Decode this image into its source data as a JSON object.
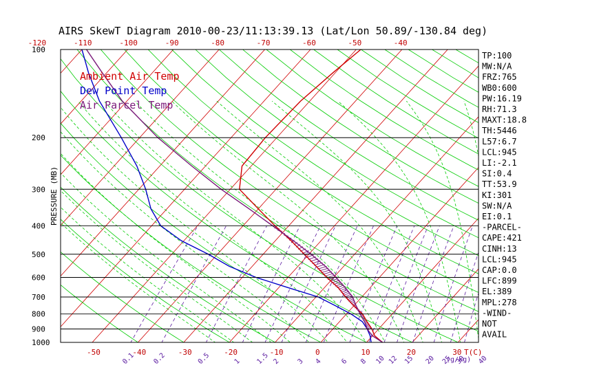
{
  "title": "AIRS SkewT Diagram 2010-00-23/11:13:39.13 (Lat/Lon 50.89/-130.84 deg)",
  "legend": [
    "Ambient Air Temp",
    "Dew Point Temp",
    "Air Parcel Temp"
  ],
  "colors": {
    "temp": "#d00000",
    "dew": "#0000c8",
    "parcel": "#7a1a7a",
    "isotherm": "#d00000",
    "dry_adiabat": "#00cc00",
    "moist_adiabat": "#00cc00",
    "mixing_ratio": "#5a1aa0",
    "frame": "#000000"
  },
  "stats": [
    "TP:100",
    "MW:N/A",
    "FRZ:765",
    "WB0:600",
    "PW:16.19",
    "RH:71.3",
    "MAXT:18.8",
    "TH:5446",
    "L57:6.7",
    "LCL:945",
    "LI:-2.1",
    "SI:0.4",
    "TT:53.9",
    "KI:301",
    "SW:N/A",
    "EI:0.1",
    "-PARCEL-",
    "CAPE:421",
    "CINH:13",
    "LCL:945",
    "CAP:0.0",
    "LFC:899",
    "EL:389",
    "MPL:278",
    "-WIND-",
    "NOT",
    "AVAIL"
  ],
  "chart_data": {
    "type": "line",
    "title": "AIRS SkewT Diagram 2010-00-23/11:13:39.13 (Lat/Lon 50.89/-130.84 deg)",
    "ylabel": "PRESSURE (MB)",
    "y_axis_scale": "log",
    "ylim": [
      1000,
      100
    ],
    "pressure_ticks": [
      100,
      200,
      300,
      400,
      500,
      600,
      700,
      800,
      900,
      1000
    ],
    "bottom_temp_ticks": [
      -50,
      -40,
      -30,
      -20,
      -10,
      0,
      10,
      20,
      30
    ],
    "bottom_unit_label": "T(C)",
    "top_temp_ticks": [
      -120,
      -110,
      -100,
      -90,
      -80,
      -70,
      -60,
      -50,
      -40
    ],
    "mixing_ratio_ticks": [
      "0.1",
      "0.2",
      "0.5",
      "1",
      "1.5",
      "2",
      "3",
      "4",
      "6",
      "8",
      "10",
      "12",
      "15",
      "20",
      "25",
      "30",
      "40"
    ],
    "mixing_ratio_unit_label": "(g/kg)",
    "mixing_ratio_values": [
      0.1,
      0.2,
      0.5,
      1,
      1.5,
      2,
      3,
      4,
      6,
      8,
      10,
      12,
      15,
      20,
      25,
      30,
      40
    ],
    "grid": true,
    "legend_position": "top-left",
    "series": [
      {
        "name": "Ambient Air Temp",
        "pressure": [
          1000,
          950,
          900,
          850,
          800,
          750,
          700,
          650,
          600,
          550,
          500,
          450,
          400,
          350,
          300,
          250,
          200,
          150,
          120,
          100
        ],
        "temperature": [
          13.5,
          10.5,
          8.5,
          6.0,
          3.5,
          0.0,
          -3.5,
          -7.0,
          -11.5,
          -16.0,
          -21.0,
          -26.5,
          -33.0,
          -40.0,
          -48.0,
          -52.0,
          -52.5,
          -52.0,
          -50.5,
          -49.0
        ]
      },
      {
        "name": "Dew Point Temp",
        "pressure": [
          1000,
          950,
          900,
          850,
          800,
          750,
          700,
          650,
          600,
          550,
          500,
          450,
          400,
          350,
          300,
          250,
          200,
          150,
          120,
          100
        ],
        "temperature": [
          11.0,
          9.5,
          7.5,
          5.0,
          1.0,
          -4.0,
          -9.5,
          -18.0,
          -27.0,
          -35.0,
          -42.0,
          -50.5,
          -58.0,
          -63.5,
          -68.5,
          -75.0,
          -84.0,
          -96.0,
          -104.0,
          -110.0
        ]
      },
      {
        "name": "Air Parcel Temp",
        "pressure": [
          1000,
          950,
          900,
          850,
          800,
          750,
          700,
          650,
          600,
          550,
          500,
          450,
          400,
          350,
          300,
          250,
          200,
          150,
          120,
          100
        ],
        "temperature": [
          13.5,
          10.0,
          7.5,
          5.5,
          3.0,
          0.5,
          -2.0,
          -5.5,
          -9.5,
          -14.0,
          -19.5,
          -26.0,
          -33.5,
          -42.0,
          -52.0,
          -63.0,
          -76.0,
          -91.0,
          -101.0,
          -109.0
        ]
      }
    ]
  }
}
